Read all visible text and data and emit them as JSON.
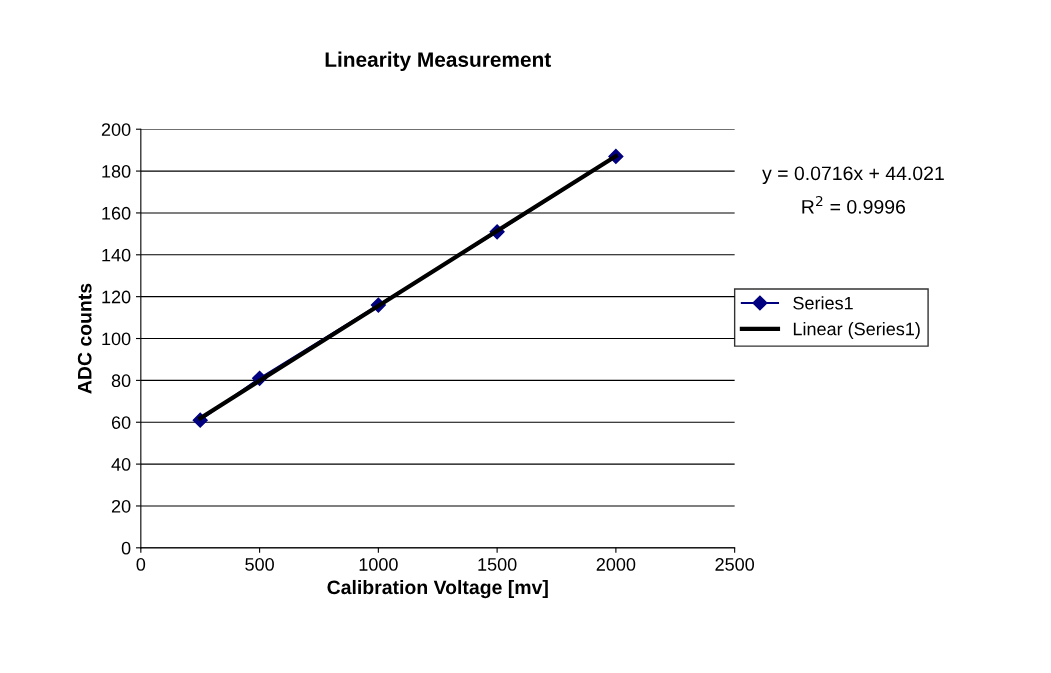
{
  "chart_data": {
    "type": "line",
    "title": "Linearity Measurement",
    "xlabel": "Calibration Voltage [mv]",
    "ylabel": "ADC counts",
    "series": [
      {
        "name": "Series1",
        "color": "#000080",
        "marker": "diamond",
        "x": [
          250,
          500,
          1000,
          1500,
          2000
        ],
        "values": [
          61,
          81,
          116,
          151,
          187
        ]
      },
      {
        "name": "Linear (Series1)",
        "color": "#000000",
        "marker": "none",
        "x": [
          250,
          2000
        ],
        "values": [
          61.9,
          187.2
        ]
      }
    ],
    "xlim": [
      0,
      2500
    ],
    "xticks": [
      0,
      500,
      1000,
      1500,
      2000,
      2500
    ],
    "ylim": [
      0,
      200
    ],
    "yticks": [
      0,
      20,
      40,
      60,
      80,
      100,
      120,
      140,
      160,
      180,
      200
    ],
    "grid": "y",
    "legend": "right",
    "annotations": [
      "y = 0.0716x + 44.021",
      "R$^{2}$ = 0.9996"
    ]
  }
}
